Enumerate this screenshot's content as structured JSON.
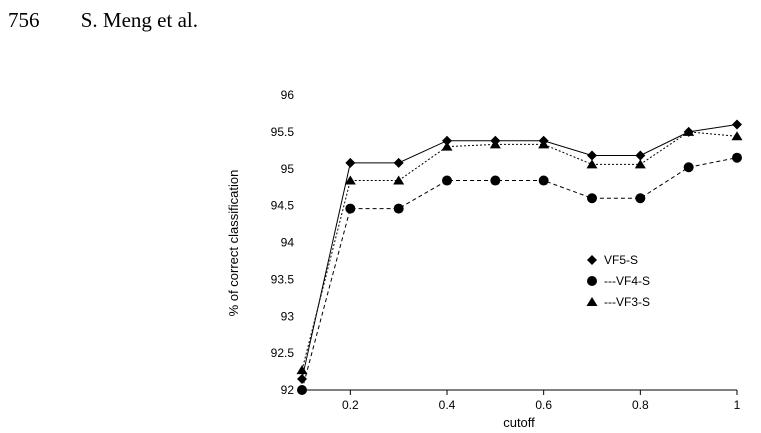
{
  "header": {
    "page_number": "756",
    "authors": "S. Meng et al."
  },
  "chart_data": {
    "type": "line",
    "xlabel": "cutoff",
    "ylabel": "% of correct classification",
    "xlim": [
      0.1,
      1.0
    ],
    "ylim": [
      92,
      96
    ],
    "x": [
      0.1,
      0.2,
      0.3,
      0.4,
      0.5,
      0.6,
      0.7,
      0.8,
      0.9,
      1.0
    ],
    "x_ticks": [
      0.2,
      0.4,
      0.6,
      0.8,
      1.0
    ],
    "x_tick_labels": [
      "0.2",
      "0.4",
      "0.6",
      "0.8",
      "1"
    ],
    "y_ticks": [
      92,
      92.5,
      93,
      93.5,
      94,
      94.5,
      95,
      95.5,
      96
    ],
    "y_tick_labels": [
      "92",
      "92.5",
      "93",
      "93.5",
      "94",
      "94.5",
      "95",
      "95.5",
      "96"
    ],
    "grid": false,
    "legend_position": "right",
    "series": [
      {
        "name": "VF5-S",
        "legend_label": "VF5-S",
        "marker": "diamond",
        "line": "solid",
        "values": [
          92.15,
          95.08,
          95.08,
          95.38,
          95.38,
          95.38,
          95.18,
          95.18,
          95.5,
          95.6
        ]
      },
      {
        "name": "VF4-S",
        "legend_label": "---VF4-S",
        "marker": "circle",
        "line": "dashed",
        "values": [
          92.0,
          94.46,
          94.46,
          94.84,
          94.84,
          94.84,
          94.6,
          94.6,
          95.02,
          95.15
        ]
      },
      {
        "name": "VF3-S",
        "legend_label": "---VF3-S",
        "marker": "triangle",
        "line": "dotted",
        "values": [
          92.27,
          94.84,
          94.84,
          95.3,
          95.33,
          95.33,
          95.06,
          95.06,
          95.5,
          95.44
        ]
      }
    ]
  }
}
